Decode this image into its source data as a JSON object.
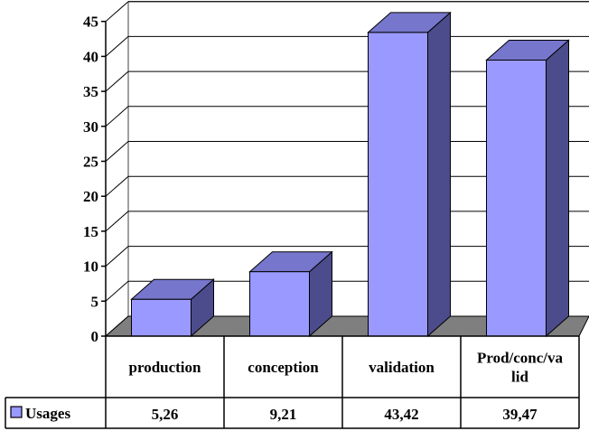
{
  "chart_data": {
    "type": "bar",
    "categories": [
      "production",
      "conception",
      "validation",
      "Prod/conc/valid"
    ],
    "category_label_lines": [
      [
        "production"
      ],
      [
        "conception"
      ],
      [
        "validation"
      ],
      [
        "Prod/conc/va",
        "lid"
      ]
    ],
    "series": [
      {
        "name": "Usages",
        "values": [
          5.26,
          9.21,
          43.42,
          39.47
        ]
      }
    ],
    "table_values": [
      "5,26",
      "9,21",
      "43,42",
      "39,47"
    ],
    "y_ticks": [
      "0",
      "5",
      "10",
      "15",
      "20",
      "25",
      "30",
      "35",
      "40",
      "45"
    ],
    "ylim": [
      0,
      45
    ],
    "grid": true,
    "legend": "data-table-left",
    "title": "",
    "xlabel": "",
    "ylabel": "",
    "colors": {
      "bar_front": "#9999ff",
      "bar_side": "#4c4c8c",
      "bar_top": "#7676cc",
      "floor": "#7f7f7f",
      "grid": "#000000"
    }
  }
}
